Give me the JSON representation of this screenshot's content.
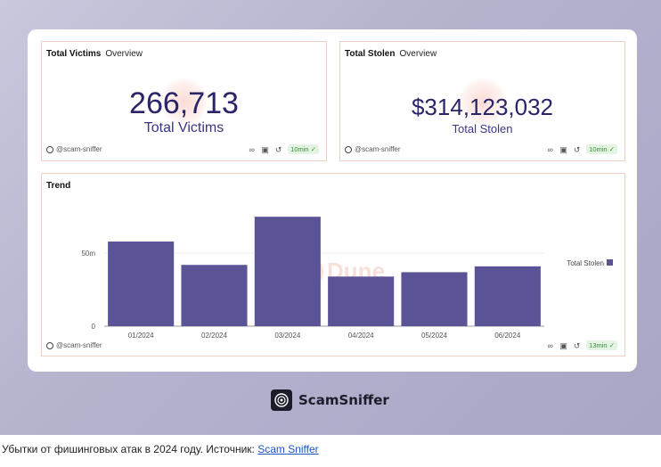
{
  "panels": {
    "victims": {
      "title": "Total Victims",
      "subtitle": "Overview",
      "value": "266,713",
      "label": "Total Victims",
      "author": "@scam-sniffer",
      "refresh": "10min"
    },
    "stolen": {
      "title": "Total Stolen",
      "subtitle": "Overview",
      "value": "$314,123,032",
      "label": "Total Stolen",
      "author": "@scam-sniffer",
      "refresh": "10min"
    },
    "trend": {
      "title": "Trend",
      "author": "@scam-sniffer",
      "refresh": "13min",
      "watermark": "Dune"
    }
  },
  "chart_data": {
    "type": "bar",
    "title": "Trend",
    "categories": [
      "01/2024",
      "02/2024",
      "03/2024",
      "04/2024",
      "05/2024",
      "06/2024"
    ],
    "series": [
      {
        "name": "Total Stolen",
        "values": [
          58,
          42,
          75,
          34,
          37,
          41
        ]
      }
    ],
    "ylim": [
      0,
      80
    ],
    "yticks": [
      0,
      50
    ],
    "ytick_labels": [
      "0",
      "50m"
    ],
    "legend_position": "right",
    "colors": {
      "bar": "#5a5396"
    }
  },
  "brand": {
    "name": "ScamSniffer"
  },
  "caption": {
    "text": "Убытки от фишинговых атак в 2024 году. Источник: ",
    "link": "Scam Sniffer"
  },
  "icons": [
    "profile-icon",
    "share-icon",
    "camera-icon",
    "refresh-icon",
    "check-icon"
  ]
}
